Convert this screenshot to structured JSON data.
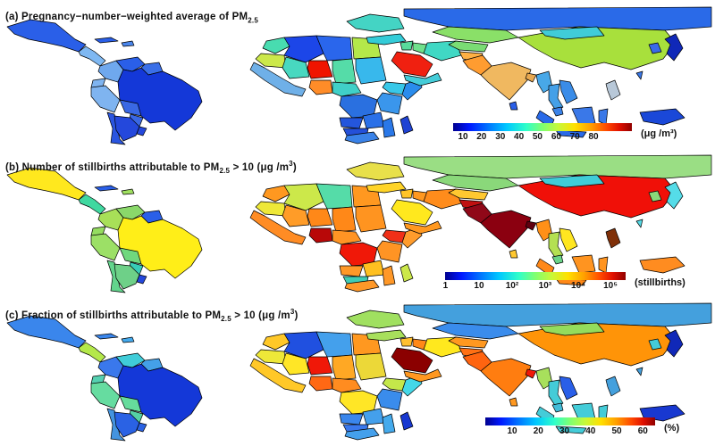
{
  "chart_data": {
    "type": "choropleth-map-figure",
    "background": "#ffffff",
    "colormap_jet": [
      "#00008f",
      "#0018ff",
      "#0078ff",
      "#00c8ff",
      "#30ffc8",
      "#80ff70",
      "#c8f838",
      "#ffe000",
      "#ffa000",
      "#ff4800",
      "#e01000",
      "#900000"
    ],
    "panels": [
      {
        "id": "a",
        "title_parts": [
          {
            "t": "text",
            "s": "(a) Pregnancy−number−weighted average of PM"
          },
          {
            "t": "sub",
            "s": "2.5"
          }
        ],
        "colorbar": {
          "scale": "linear",
          "unit": "(μg /m³)",
          "ticks": [
            {
              "label": "10",
              "pos": 0.055
            },
            {
              "label": "20",
              "pos": 0.159
            },
            {
              "label": "30",
              "pos": 0.264
            },
            {
              "label": "40",
              "pos": 0.368
            },
            {
              "label": "50",
              "pos": 0.472
            },
            {
              "label": "60",
              "pos": 0.577
            },
            {
              "label": "70",
              "pos": 0.681
            },
            {
              "label": "80",
              "pos": 0.785
            }
          ]
        }
      },
      {
        "id": "b",
        "title_parts": [
          {
            "t": "text",
            "s": "(b) Number of stillbirths attributable to PM"
          },
          {
            "t": "sub",
            "s": "2.5"
          },
          {
            "t": "text",
            "s": " > 10 (μg /m"
          },
          {
            "t": "sup",
            "s": "3"
          },
          {
            "t": "text",
            "s": ")"
          }
        ],
        "colorbar": {
          "scale": "log",
          "unit": "(stillbirths)",
          "ticks": [
            {
              "label": "1",
              "pos": 0.002
            },
            {
              "label": "10",
              "pos": 0.188
            },
            {
              "label": "10²",
              "pos": 0.371
            },
            {
              "label": "10³",
              "pos": 0.554
            },
            {
              "label": "10⁴",
              "pos": 0.738
            },
            {
              "label": "10⁵",
              "pos": 0.916
            }
          ]
        }
      },
      {
        "id": "c",
        "title_parts": [
          {
            "t": "text",
            "s": "(c) Fraction of stillbirths attributable to PM"
          },
          {
            "t": "sub",
            "s": "2.5"
          },
          {
            "t": "text",
            "s": " > 10 (μg /m"
          },
          {
            "t": "sup",
            "s": "3"
          },
          {
            "t": "text",
            "s": ")"
          }
        ],
        "colorbar": {
          "scale": "linear",
          "unit": "(%)",
          "ticks": [
            {
              "label": "10",
              "pos": 0.158
            },
            {
              "label": "20",
              "pos": 0.312
            },
            {
              "label": "30",
              "pos": 0.466
            },
            {
              "label": "40",
              "pos": 0.62
            },
            {
              "label": "50",
              "pos": 0.774
            },
            {
              "label": "60",
              "pos": 0.928
            }
          ]
        }
      }
    ],
    "country_fills": {
      "mexico": [
        "#2a5fe8",
        "#ffe81e",
        "#3a86ec"
      ],
      "centralamerica": [
        "#7fb8f2",
        "#40d8a0",
        "#b4e84a"
      ],
      "cuba": [
        "#2a5fe8",
        "#2a5fe8",
        "#3a86ec"
      ],
      "hispaniola": [
        "#4a86ec",
        "#a0e060",
        "#44aaee"
      ],
      "colombia": [
        "#6fa8ee",
        "#a8e058",
        "#3a78ec"
      ],
      "venezuela": [
        "#2a5fe8",
        "#8ad86a",
        "#40ccd8"
      ],
      "guyanas": [
        "#3a6fe8",
        "#2a5fe8",
        "#44a0e8"
      ],
      "ecuador": [
        "#7fb4f0",
        "#94dc60",
        "#55d0b0"
      ],
      "peru": [
        "#7fb4f0",
        "#9ce066",
        "#66dca0"
      ],
      "brazil": [
        "#1438d8",
        "#ffee18",
        "#1438d8"
      ],
      "bolivia": [
        "#3a68e4",
        "#70d87e",
        "#66dc9c"
      ],
      "paraguay": [
        "#3a68e4",
        "#38ccb8",
        "#55d0a4"
      ],
      "chile": [
        "#2a55e0",
        "#62d48c",
        "#4494e0"
      ],
      "argentina": [
        "#2448dc",
        "#6ed088",
        "#2a62e4"
      ],
      "uruguay": [
        "#2448dc",
        "#2448dc",
        "#2a62e4"
      ],
      "morocco": [
        "#48dcb0",
        "#ff9820",
        "#ffc828"
      ],
      "algeria": [
        "#1c46e8",
        "#cce84a",
        "#2050e0"
      ],
      "libya": [
        "#2a66ec",
        "#55dca8",
        "#44a0ec"
      ],
      "egypt": [
        "#b4e84a",
        "#ff9820",
        "#ff9820"
      ],
      "mauritania": [
        "#cce84a",
        "#eee838",
        "#eee838"
      ],
      "mali": [
        "#48d8c0",
        "#ff9c28",
        "#ffe626"
      ],
      "niger": [
        "#f01400",
        "#ff8818",
        "#f01808"
      ],
      "chad": [
        "#55dca8",
        "#ff8818",
        "#ffa824"
      ],
      "sudan": [
        "#38b8ec",
        "#ff9420",
        "#ecd838"
      ],
      "westafrica": [
        "#6fb0e8",
        "#ff8c24",
        "#ffc828"
      ],
      "nigeria": [
        "#ff8c28",
        "#b80808",
        "#ff6814"
      ],
      "centralafrica": [
        "#40d0c8",
        "#ff9424",
        "#ff8c20"
      ],
      "ethiopia": [
        "#38c8e8",
        "#f03018",
        "#c4e84a"
      ],
      "somalia": [
        "#2a8cec",
        "#ff9c2c",
        "#44d8e8"
      ],
      "eastafrica": [
        "#3a96ec",
        "#ff9424",
        "#3a8cec"
      ],
      "drc": [
        "#2a70e0",
        "#f01808",
        "#ffe626"
      ],
      "angola": [
        "#2456dc",
        "#ff9828",
        "#3a86ec"
      ],
      "zambia": [
        "#2a70e8",
        "#ffc020",
        "#44a0ec"
      ],
      "namibia": [
        "#2450d8",
        "#40ccb4",
        "#3a78ec"
      ],
      "southafrica": [
        "#3a82e8",
        "#ff9828",
        "#44a0ec"
      ],
      "mozambique": [
        "#2a78e8",
        "#ff9828",
        "#44aaec"
      ],
      "madagascar": [
        "#2043d4",
        "#cce84a",
        "#1838d0"
      ],
      "easteurope": [
        "#44d4c4",
        "#e8e04a",
        "#a0e060"
      ],
      "russia": [
        "#2a6ae8",
        "#9ade84",
        "#44a0dd"
      ],
      "turkey": [
        "#34ccd8",
        "#ffd428",
        "#a8e05c"
      ],
      "levant": [
        "#58dc9c",
        "#ffc428",
        "#ffc030"
      ],
      "iraq": [
        "#6fe08c",
        "#ff9820",
        "#ff8818"
      ],
      "iran": [
        "#40d8c4",
        "#ff8c1c",
        "#ffe81e"
      ],
      "saudi": [
        "#f02010",
        "#ffe81e",
        "#8b0000"
      ],
      "yemen": [
        "#44ccd8",
        "#ff9820",
        "#ff9820"
      ],
      "kazakhstan": [
        "#8ae068",
        "#8ad87a",
        "#3a8cec"
      ],
      "centralasia": [
        "#7adc74",
        "#ffc830",
        "#ff9820"
      ],
      "afghanistan": [
        "#ffb044",
        "#c01010",
        "#ff7014"
      ],
      "pakistan": [
        "#ff9c30",
        "#900818",
        "#ff6410"
      ],
      "india": [
        "#f0b860",
        "#8b0010",
        "#ff7d10"
      ],
      "srilanka": [
        "#2a5fe8",
        "#ffc830",
        "#ff9820"
      ],
      "bangladesh": [
        "#e8a850",
        "#600010",
        "#f01808"
      ],
      "china": [
        "#a8e03c",
        "#f01008",
        "#ff9408"
      ],
      "mongolia": [
        "#40ccd8",
        "#40ccd8",
        "#94dc5c"
      ],
      "myanmar": [
        "#48a8e8",
        "#ff9018",
        "#a8e05c"
      ],
      "thailand": [
        "#44a0e8",
        "#b4e052",
        "#44ccd8"
      ],
      "vietnam": [
        "#3a8ce8",
        "#ffe620",
        "#2a5fe8"
      ],
      "malaysia": [
        "#3a82e8",
        "#6ad488",
        "#44bcd8"
      ],
      "sumatra": [
        "#2a6ae8",
        "#ff8818",
        "#44ccd8"
      ],
      "java": [
        "#2a6ae8",
        "#ff8818",
        "#44ccd8"
      ],
      "borneo": [
        "#3a78e8",
        "#ff9420",
        "#44ccd8"
      ],
      "sulawesi": [
        "#3a78e8",
        "#ff9420",
        "#44ccd8"
      ],
      "philippines": [
        "#b8c8d8",
        "#803008",
        "#44a0dd"
      ],
      "newguinea": [
        "#1a48d8",
        "#ff8c20",
        "#1838d0"
      ],
      "japan": [
        "#1028b8",
        "#55dce8",
        "#1028b8"
      ],
      "korea": [
        "#3a6ae8",
        "#8ad87a",
        "#44ccd8"
      ],
      "taiwan": [
        "#3a78e8",
        "#55dce8",
        "#44a0dd"
      ]
    }
  }
}
